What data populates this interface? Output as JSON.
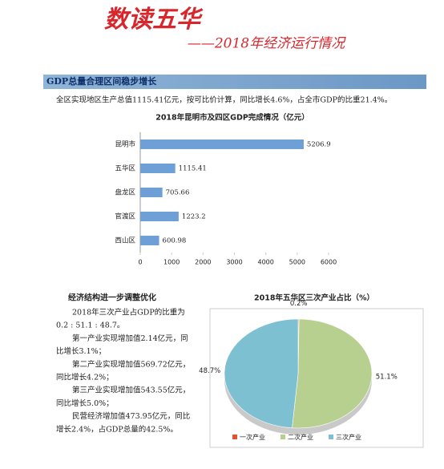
{
  "header": {
    "title": "数读五华",
    "subtitle": "——2018年经济运行情况"
  },
  "section": {
    "heading": "GDP总量合理区间稳步增长",
    "text": "全区实现地区生产总值1115.41亿元，按可比价计算，同比增长4.6%，占全市GDP的比重21.4%。"
  },
  "chart_data": [
    {
      "type": "bar",
      "orientation": "horizontal",
      "title": "2018年昆明市及四区GDP完成情况（亿元）",
      "categories": [
        "昆明市",
        "五华区",
        "盘龙区",
        "官渡区",
        "西山区"
      ],
      "values": [
        5206.9,
        1115.41,
        705.66,
        1223.2,
        600.98
      ],
      "color": "#6e9fd6",
      "xlim": [
        0,
        6000
      ],
      "xticks": [
        0,
        1000,
        2000,
        3000,
        4000,
        5000,
        6000
      ],
      "grid": false
    },
    {
      "type": "pie",
      "title": "2018年五华区三次产业占比（%）",
      "categories": [
        "一次产业",
        "二次产业",
        "三次产业"
      ],
      "values": [
        0.2,
        51.1,
        48.7
      ],
      "value_labels": [
        "0.2%",
        "51.1%",
        "48.7%"
      ],
      "colors": [
        "#e0542f",
        "#b8d08f",
        "#7dc0d2"
      ]
    }
  ],
  "article": {
    "heading": "经济结构进一步调整优化",
    "lines": [
      "2018年三次产业占GDP的比重为",
      "0.2 : 51.1 : 48.7。",
      "第一产业实现增加值2.14亿元，同",
      "比增长3.1%；",
      "第二产业实现增加值569.72亿元，",
      "同比增长4.2%；",
      "第三产业实现增加值543.55亿元，",
      "同比增长5.0%；",
      "民营经济增加值473.95亿元，同比",
      "增长2.4%，占GDP总量的42.5%。"
    ]
  }
}
